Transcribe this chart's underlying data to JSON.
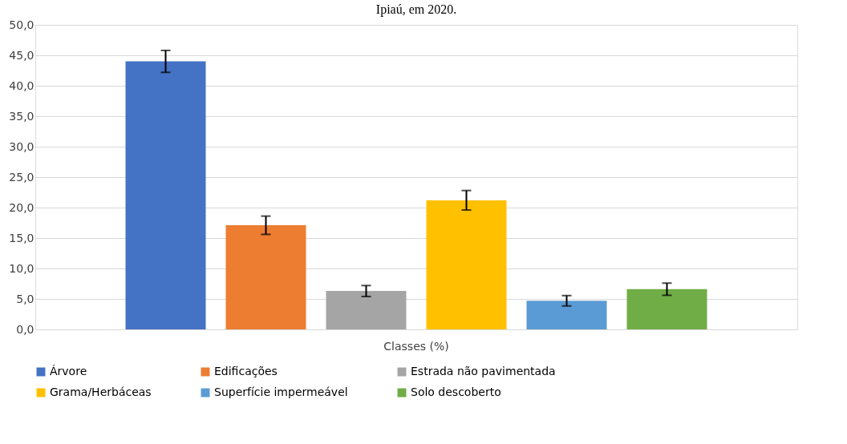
{
  "chart_data": {
    "type": "bar",
    "title": "Ipiaú, em 2020.",
    "categories": [
      "Classes (%)"
    ],
    "series": [
      {
        "name": "Árvore",
        "color": "#4472c4",
        "values": [
          44.0
        ],
        "errors": [
          1.8
        ]
      },
      {
        "name": "Edificações",
        "color": "#ed7d31",
        "values": [
          17.1
        ],
        "errors": [
          1.5
        ]
      },
      {
        "name": "Estrada não pavimentada",
        "color": "#a5a5a5",
        "values": [
          6.3
        ],
        "errors": [
          0.9
        ]
      },
      {
        "name": "Grama/Herbáceas",
        "color": "#ffc000",
        "values": [
          21.2
        ],
        "errors": [
          1.6
        ]
      },
      {
        "name": "Superfície impermeável",
        "color": "#5b9bd5",
        "values": [
          4.7
        ],
        "errors": [
          0.85
        ]
      },
      {
        "name": "Solo descoberto",
        "color": "#70ad47",
        "values": [
          6.6
        ],
        "errors": [
          1.0
        ]
      }
    ],
    "ylim": [
      0,
      50
    ],
    "yticks": [
      {
        "value": 0,
        "label": "0,0"
      },
      {
        "value": 5,
        "label": "5,0"
      },
      {
        "value": 10,
        "label": "10,0"
      },
      {
        "value": 15,
        "label": "15,0"
      },
      {
        "value": 20,
        "label": "20,0"
      },
      {
        "value": 25,
        "label": "25,0"
      },
      {
        "value": 30,
        "label": "30,0"
      },
      {
        "value": 35,
        "label": "35,0"
      },
      {
        "value": 40,
        "label": "40,0"
      },
      {
        "value": 45,
        "label": "45,0"
      },
      {
        "value": 50,
        "label": "50,0"
      }
    ],
    "grid": "y",
    "legend": "bottom"
  }
}
